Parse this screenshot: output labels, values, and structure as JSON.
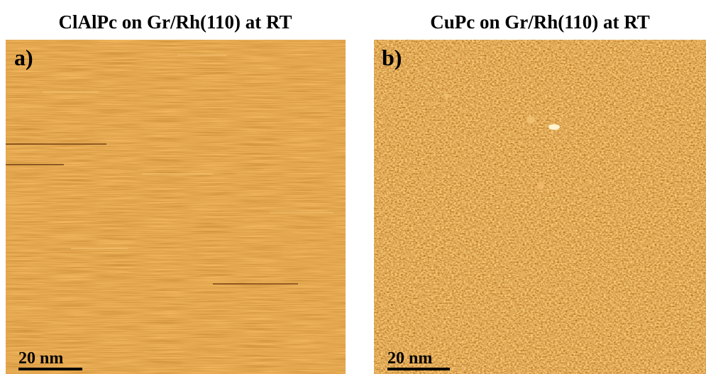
{
  "panels": [
    {
      "title": "ClAlPc on Gr/Rh(110) at RT",
      "label": "a)",
      "scale_bar": "20 nm"
    },
    {
      "title": "CuPc on Gr/Rh(110) at RT",
      "label": "b)",
      "scale_bar": "20 nm"
    }
  ]
}
